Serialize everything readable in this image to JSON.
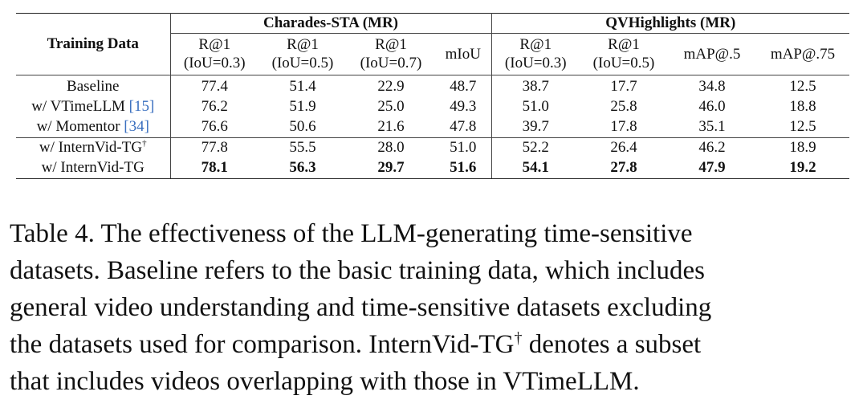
{
  "table": {
    "row_header": "Training Data",
    "groups": [
      {
        "name": "Charades-STA (MR)"
      },
      {
        "name": "QVHighlights (MR)"
      }
    ],
    "columns": [
      {
        "l1": "R@1",
        "l2": "(IoU=0.3)"
      },
      {
        "l1": "R@1",
        "l2": "(IoU=0.5)"
      },
      {
        "l1": "R@1",
        "l2": "(IoU=0.7)"
      },
      {
        "l1": "mIoU",
        "l2": ""
      },
      {
        "l1": "R@1",
        "l2": "(IoU=0.3)"
      },
      {
        "l1": "R@1",
        "l2": "(IoU=0.5)"
      },
      {
        "l1": "mAP@.5",
        "l2": ""
      },
      {
        "l1": "mAP@.75",
        "l2": ""
      }
    ],
    "rows": [
      {
        "label": "Baseline",
        "cite": "",
        "sup": "",
        "values": [
          "77.4",
          "51.4",
          "22.9",
          "48.7",
          "38.7",
          "17.7",
          "34.8",
          "12.5"
        ],
        "bold": false
      },
      {
        "label": "w/ VTimeLLM ",
        "cite": "[15]",
        "sup": "",
        "values": [
          "76.2",
          "51.9",
          "25.0",
          "49.3",
          "51.0",
          "25.8",
          "46.0",
          "18.8"
        ],
        "bold": false
      },
      {
        "label": "w/ Momentor ",
        "cite": "[34]",
        "sup": "",
        "values": [
          "76.6",
          "50.6",
          "21.6",
          "47.8",
          "39.7",
          "17.8",
          "35.1",
          "12.5"
        ],
        "bold": false
      },
      {
        "label": "w/ InternVid-TG",
        "cite": "",
        "sup": "†",
        "values": [
          "77.8",
          "55.5",
          "28.0",
          "51.0",
          "52.2",
          "26.4",
          "46.2",
          "18.9"
        ],
        "bold": false
      },
      {
        "label": "w/ InternVid-TG",
        "cite": "",
        "sup": "",
        "values": [
          "78.1",
          "56.3",
          "29.7",
          "51.6",
          "54.1",
          "27.8",
          "47.9",
          "19.2"
        ],
        "bold": true
      }
    ]
  },
  "caption": {
    "lines": [
      "Table 4.  The effectiveness of the LLM-generating time-sensitive",
      "datasets. Baseline refers to the basic training data, which includes",
      "general video understanding and time-sensitive datasets excluding",
      "the datasets used for comparison. InternVid-TG",
      "that includes videos overlapping with those in VTimeLLM."
    ],
    "line4_sup": "†",
    "line4_tail": " denotes a subset"
  }
}
